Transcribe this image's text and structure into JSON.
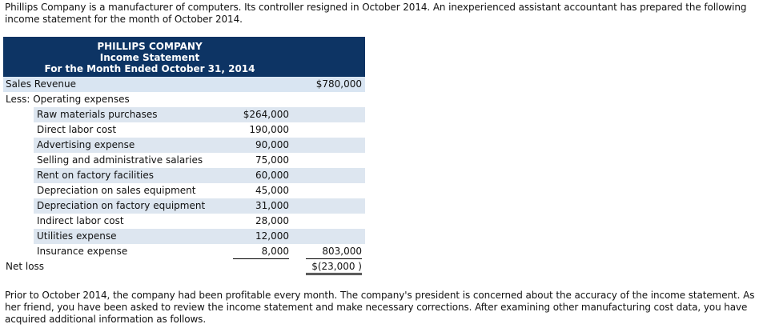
{
  "intro": "Phillips Company is a manufacturer of computers. Its controller resigned in October 2014. An inexperienced assistant accountant has prepared the following income statement for the month of October 2014.",
  "statement": {
    "company": "PHILLIPS COMPANY",
    "title": "Income Statement",
    "period": "For the Month Ended October 31, 2014",
    "sales_label": "Sales Revenue",
    "sales_amount": "$780,000",
    "less_label": "Less: Operating expenses",
    "expenses": [
      {
        "label": "Raw materials purchases",
        "amount": "$264,000"
      },
      {
        "label": "Direct labor cost",
        "amount": "190,000"
      },
      {
        "label": "Advertising expense",
        "amount": "90,000"
      },
      {
        "label": "Selling and administrative salaries",
        "amount": "75,000"
      },
      {
        "label": "Rent on factory facilities",
        "amount": "60,000"
      },
      {
        "label": "Depreciation on sales equipment",
        "amount": "45,000"
      },
      {
        "label": "Depreciation on factory equipment",
        "amount": "31,000"
      },
      {
        "label": "Indirect labor cost",
        "amount": "28,000"
      },
      {
        "label": "Utilities expense",
        "amount": "12,000"
      },
      {
        "label": "Insurance expense",
        "amount": "8,000"
      }
    ],
    "total_expenses": "803,000",
    "net_label": "Net loss",
    "net_amount": "$(23,000 )"
  },
  "outro": "Prior to October 2014, the company had been profitable every month. The company's president is concerned about the accuracy of the income statement. As her friend, you have been asked to review the income statement and make necessary corrections. After examining other manufacturing cost data, you have acquired additional information as follows.",
  "colors": {
    "header_bg": "#0d3464",
    "row_shade": "#dde6f0"
  }
}
